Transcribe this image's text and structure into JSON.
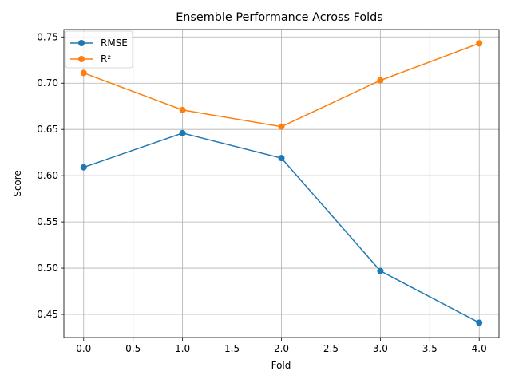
{
  "chart_data": {
    "type": "line",
    "title": "Ensemble Performance Across Folds",
    "xlabel": "Fold",
    "ylabel": "Score",
    "x": [
      0,
      1,
      2,
      3,
      4
    ],
    "series": [
      {
        "name": "RMSE",
        "color": "#1f77b4",
        "values": [
          0.609,
          0.646,
          0.619,
          0.497,
          0.441
        ]
      },
      {
        "name": "R²",
        "color": "#ff7f0e",
        "values": [
          0.711,
          0.671,
          0.653,
          0.703,
          0.743
        ]
      }
    ],
    "xlim": [
      -0.2,
      4.2
    ],
    "ylim": [
      0.425,
      0.758
    ],
    "xticks": [
      0.0,
      0.5,
      1.0,
      1.5,
      2.0,
      2.5,
      3.0,
      3.5,
      4.0
    ],
    "xtick_labels": [
      "0.0",
      "0.5",
      "1.0",
      "1.5",
      "2.0",
      "2.5",
      "3.0",
      "3.5",
      "4.0"
    ],
    "yticks": [
      0.45,
      0.5,
      0.55,
      0.6,
      0.65,
      0.7,
      0.75
    ],
    "ytick_labels": [
      "0.45",
      "0.50",
      "0.55",
      "0.60",
      "0.65",
      "0.70",
      "0.75"
    ],
    "grid": true,
    "legend_position": "top-left"
  }
}
